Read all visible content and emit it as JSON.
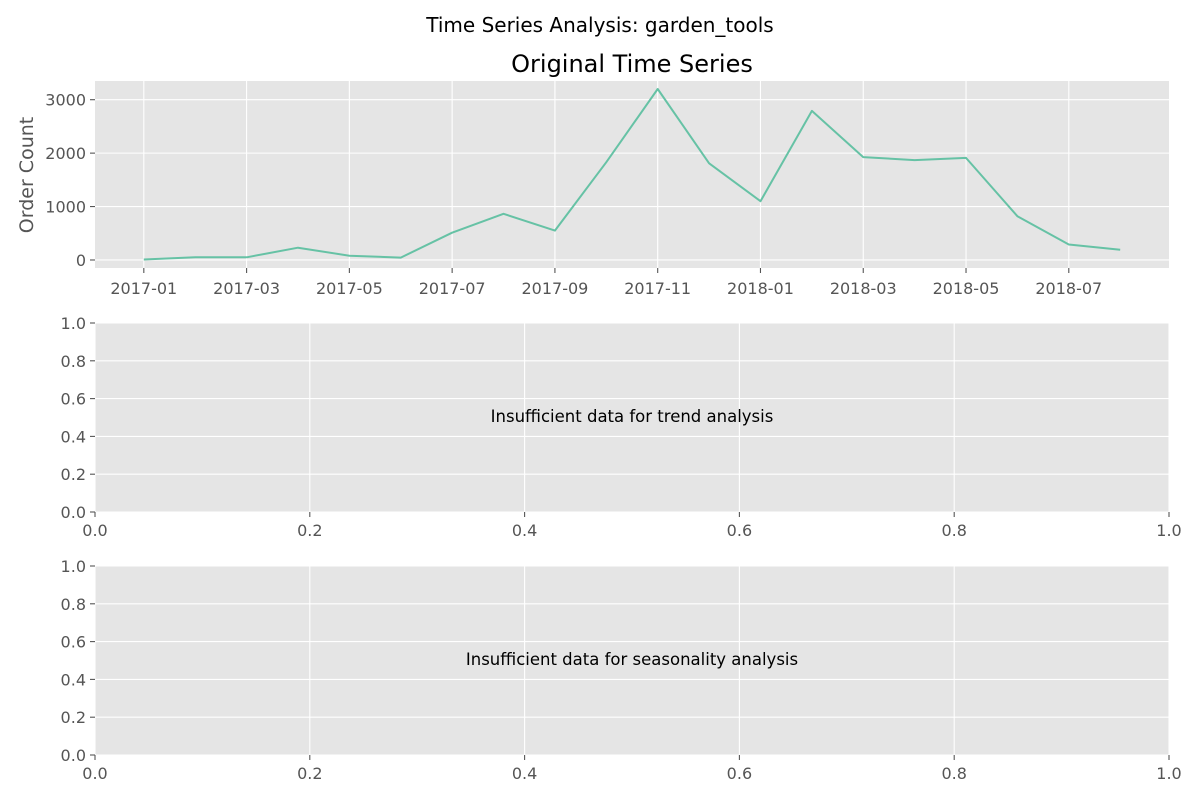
{
  "figure": {
    "suptitle": "Time Series Analysis: garden_tools"
  },
  "chart_data": [
    {
      "type": "line",
      "title": "Original Time Series",
      "xlabel": "",
      "ylabel": "Order Count",
      "x": [
        "2017-01",
        "2017-02",
        "2017-03",
        "2017-04",
        "2017-05",
        "2017-06",
        "2017-07",
        "2017-08",
        "2017-09",
        "2017-10",
        "2017-11",
        "2017-12",
        "2018-01",
        "2018-02",
        "2018-03",
        "2018-04",
        "2018-05",
        "2018-06",
        "2018-07",
        "2018-08"
      ],
      "series": [
        {
          "values": [
            10,
            50,
            50,
            230,
            80,
            45,
            510,
            865,
            550,
            1830,
            3200,
            1810,
            1100,
            2790,
            1925,
            1870,
            1910,
            820,
            290,
            190
          ],
          "color": "#66c2a5"
        }
      ],
      "xticks": [
        "2017-01",
        "2017-03",
        "2017-05",
        "2017-07",
        "2017-09",
        "2017-11",
        "2018-01",
        "2018-03",
        "2018-05",
        "2018-07"
      ],
      "yticks": [
        0,
        1000,
        2000,
        3000
      ],
      "ylim": [
        -150,
        3350
      ],
      "grid": true
    },
    {
      "type": "line",
      "title": "",
      "annotation": "Insufficient data for trend analysis",
      "xlim": [
        0,
        1
      ],
      "ylim": [
        0,
        1
      ],
      "xticks": [
        "0.0",
        "0.2",
        "0.4",
        "0.6",
        "0.8",
        "1.0"
      ],
      "yticks": [
        "0.0",
        "0.2",
        "0.4",
        "0.6",
        "0.8",
        "1.0"
      ],
      "grid": true
    },
    {
      "type": "line",
      "title": "",
      "annotation": "Insufficient data for seasonality analysis",
      "xlim": [
        0,
        1
      ],
      "ylim": [
        0,
        1
      ],
      "xticks": [
        "0.0",
        "0.2",
        "0.4",
        "0.6",
        "0.8",
        "1.0"
      ],
      "yticks": [
        "0.0",
        "0.2",
        "0.4",
        "0.6",
        "0.8",
        "1.0"
      ],
      "grid": true
    }
  ]
}
